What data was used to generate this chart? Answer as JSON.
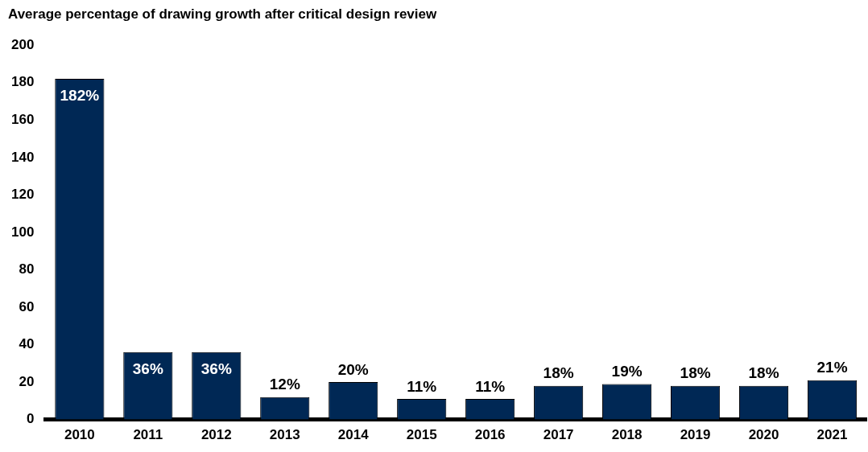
{
  "chart_data": {
    "type": "bar",
    "title": "Average percentage of drawing growth after critical design review",
    "categories": [
      "2010",
      "2011",
      "2012",
      "2013",
      "2014",
      "2015",
      "2016",
      "2017",
      "2018",
      "2019",
      "2020",
      "2021"
    ],
    "values": [
      182,
      36,
      36,
      12,
      20,
      11,
      11,
      18,
      19,
      18,
      18,
      21
    ],
    "value_labels": [
      "182%",
      "36%",
      "36%",
      "12%",
      "20%",
      "11%",
      "11%",
      "18%",
      "19%",
      "18%",
      "18%",
      "21%"
    ],
    "color": "#002855",
    "ylim": [
      0,
      200
    ],
    "yticks": [
      0,
      20,
      40,
      60,
      80,
      100,
      120,
      140,
      160,
      180,
      200
    ],
    "grid": false,
    "legend": false
  }
}
